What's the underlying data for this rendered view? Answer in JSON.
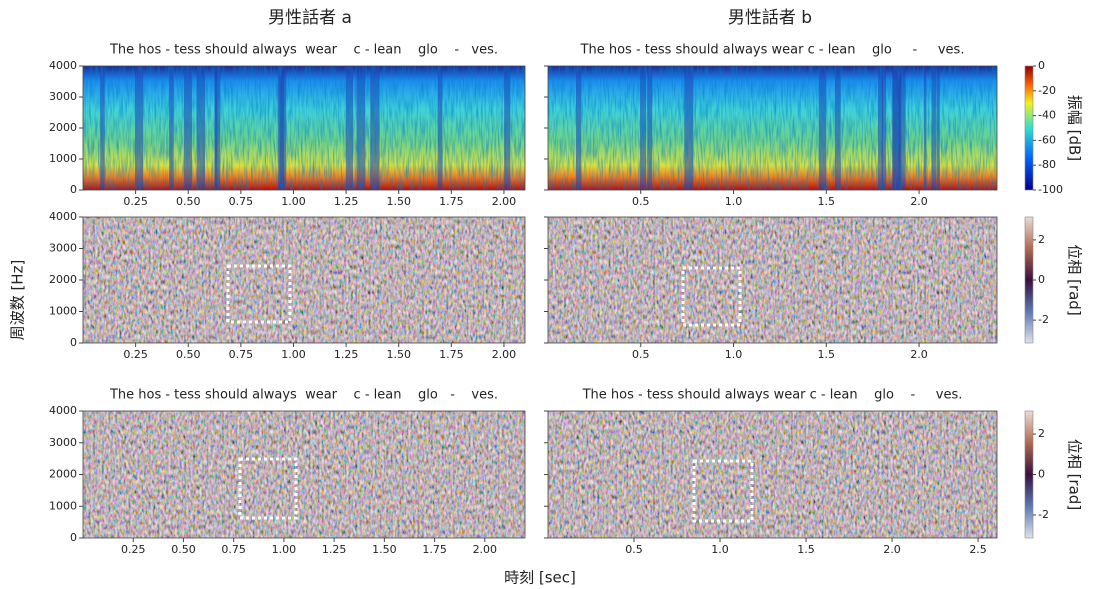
{
  "figure": {
    "column_titles": [
      "男性話者 a",
      "男性話者 b"
    ],
    "x_label": "時刻 [sec]",
    "y_label": "周波数 [Hz]"
  },
  "chart_data": [
    {
      "type": "spectrogram",
      "annotation": "The hos - tess should always  wear    c - lean    glo    -   ves.",
      "xlim": [
        0,
        2.1
      ],
      "xticks": [
        0.25,
        {
          "value": 0.5,
          "label": "0.50"
        },
        0.75,
        {
          "value": 1,
          "label": "1.00"
        },
        1.25,
        {
          "value": 1.5,
          "label": "1.50"
        },
        1.75,
        {
          "value": 2,
          "label": "2.00"
        }
      ],
      "ylim": [
        0,
        4000
      ],
      "yticks": [
        0,
        1000,
        2000,
        3000,
        4000
      ]
    },
    {
      "type": "spectrogram",
      "annotation": "The hos - tess should always wear c - lean    glo     -     ves.",
      "xlim": [
        0,
        2.42
      ],
      "xticks": [
        0.5,
        {
          "value": 1,
          "label": "1.0"
        },
        1.5,
        {
          "value": 2,
          "label": "2.0"
        }
      ],
      "ylim": [
        0,
        4000
      ],
      "yticks": [
        0,
        1000,
        2000,
        3000,
        4000
      ],
      "colorbar": {
        "label": "振幅 [dB]",
        "lim": [
          -100,
          0
        ],
        "ticks": [
          0,
          -20,
          -40,
          -60,
          -80,
          -100
        ]
      }
    },
    {
      "type": "phase",
      "xlim": [
        0,
        2.1
      ],
      "xticks": [
        0.25,
        {
          "value": 0.5,
          "label": "0.50"
        },
        0.75,
        {
          "value": 1,
          "label": "1.00"
        },
        1.25,
        {
          "value": 1.5,
          "label": "1.50"
        },
        1.75,
        {
          "value": 2,
          "label": "2.00"
        }
      ],
      "ylim": [
        0,
        4000
      ],
      "yticks": [
        0,
        1000,
        2000,
        3000,
        4000
      ]
    },
    {
      "type": "phase",
      "xlim": [
        0,
        2.42
      ],
      "xticks": [
        0.5,
        {
          "value": 1,
          "label": "1.0"
        },
        1.5,
        {
          "value": 2,
          "label": "2.0"
        }
      ],
      "ylim": [
        0,
        4000
      ],
      "yticks": [
        0,
        1000,
        2000,
        3000,
        4000
      ],
      "colorbar": {
        "label": "位相 [rad]",
        "lim": [
          -3.14,
          3.14
        ],
        "ticks": [
          2,
          0,
          -2
        ]
      }
    },
    {
      "type": "phase",
      "annotation": "The hos - tess should always  wear    c - lean    glo   -    ves.",
      "xlim": [
        0,
        2.2
      ],
      "xticks": [
        0.25,
        {
          "value": 0.5,
          "label": "0.50"
        },
        0.75,
        {
          "value": 1,
          "label": "1.00"
        },
        1.25,
        {
          "value": 1.5,
          "label": "1.50"
        },
        1.75,
        {
          "value": 2,
          "label": "2.00"
        }
      ],
      "ylim": [
        0,
        4000
      ],
      "yticks": [
        0,
        1000,
        2000,
        3000,
        4000
      ]
    },
    {
      "type": "phase",
      "annotation": "The hos - tess should always wear c - lean    glo    -     ves.",
      "xlim": [
        0,
        2.61
      ],
      "xticks": [
        0.5,
        {
          "value": 1,
          "label": "1.0"
        },
        1.5,
        {
          "value": 2,
          "label": "2.0"
        },
        2.5
      ],
      "ylim": [
        0,
        4000
      ],
      "yticks": [
        0,
        1000,
        2000,
        3000,
        4000
      ],
      "colorbar": {
        "label": "位相 [rad]",
        "lim": [
          -3.14,
          3.14
        ],
        "ticks": [
          2,
          0,
          -2
        ]
      }
    }
  ]
}
